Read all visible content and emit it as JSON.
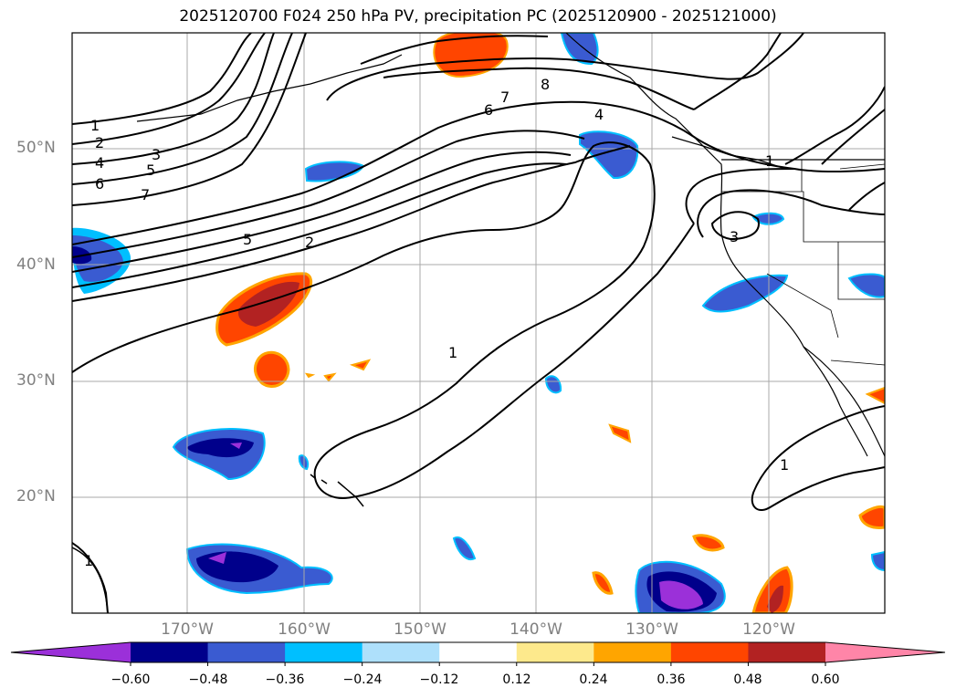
{
  "title": "2025120700 F024 250 hPa PV, precipitation PC (2025120900 - 2025121000)",
  "lat_labels": [
    "50°N",
    "40°N",
    "30°N",
    "20°N"
  ],
  "lon_labels": [
    "170°W",
    "160°W",
    "150°W",
    "140°W",
    "130°W",
    "120°W"
  ],
  "colorbar": {
    "ticks": [
      "−0.60",
      "−0.48",
      "−0.36",
      "−0.24",
      "−0.12",
      "0.12",
      "0.24",
      "0.36",
      "0.48",
      "0.60"
    ],
    "colors": [
      "#9b30d9",
      "#00008b",
      "#3a5bd1",
      "#00bfff",
      "#aee0fb",
      "#ffffff",
      "#fde98c",
      "#ffa500",
      "#ff4500",
      "#b22222",
      "#ff85a8"
    ]
  },
  "pv_contour_labels": [
    "1",
    "2",
    "3",
    "4",
    "5",
    "6",
    "7",
    "8"
  ],
  "colors": {
    "grid": "#a8a8a8",
    "contour": "#000000",
    "coast": "#000000"
  }
}
